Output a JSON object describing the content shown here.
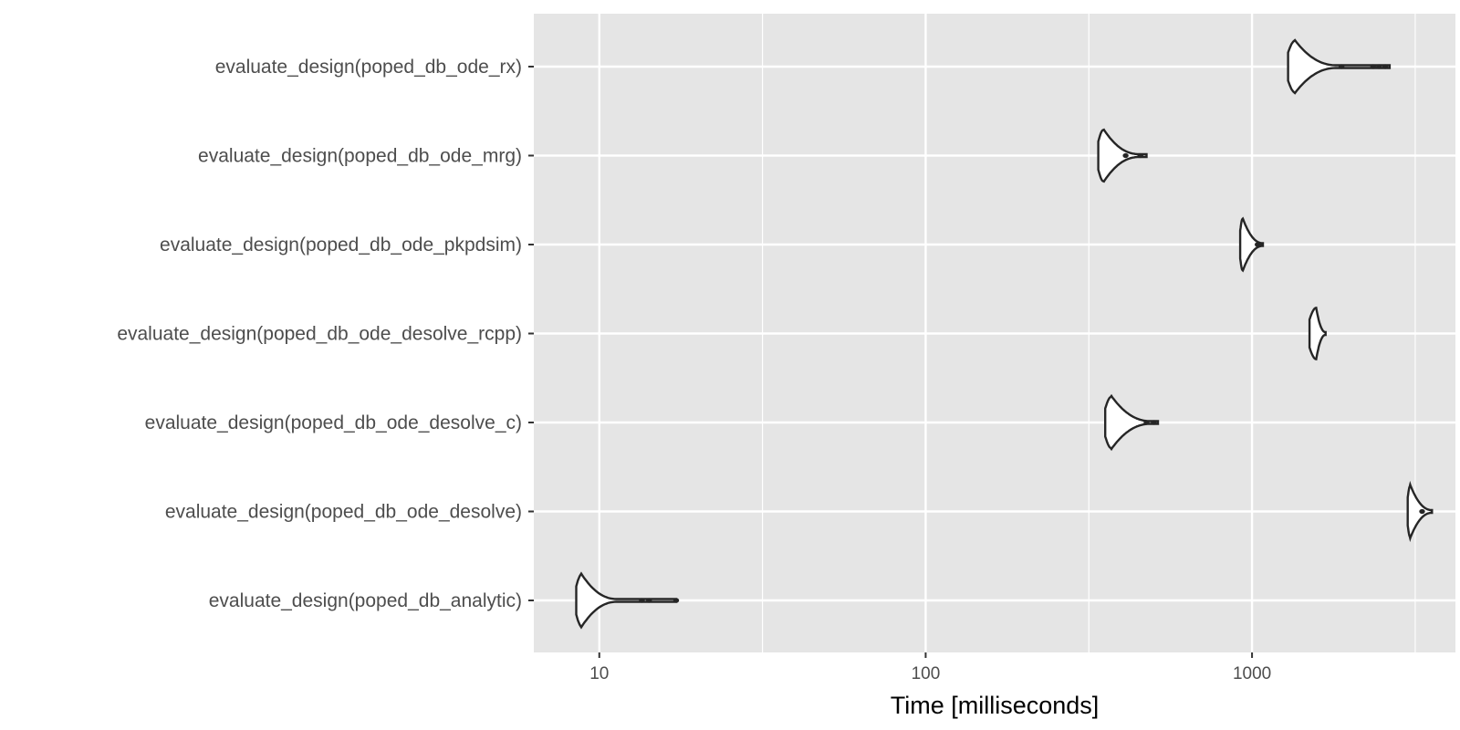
{
  "chart_data": {
    "type": "violin",
    "xlabel": "Time [milliseconds]",
    "ylabel": "",
    "x_scale": "log10",
    "xlim": [
      6.3,
      4200
    ],
    "xticks": [
      {
        "value": 10,
        "label": "10"
      },
      {
        "value": 100,
        "label": "100"
      },
      {
        "value": 1000,
        "label": "1000"
      }
    ],
    "grid": true,
    "categories": [
      "evaluate_design(poped_db_ode_rx)",
      "evaluate_design(poped_db_ode_mrg)",
      "evaluate_design(poped_db_ode_pkpdsim)",
      "evaluate_design(poped_db_ode_desolve_rcpp)",
      "evaluate_design(poped_db_ode_desolve_c)",
      "evaluate_design(poped_db_ode_desolve)",
      "evaluate_design(poped_db_analytic)"
    ],
    "series": [
      {
        "category": "evaluate_design(poped_db_ode_rx)",
        "min": 1290,
        "peak": 1350,
        "max": 2640,
        "tail_points": [
          1880,
          2350,
          2450,
          2560
        ]
      },
      {
        "category": "evaluate_design(poped_db_ode_mrg)",
        "min": 338,
        "peak": 350,
        "max": 475,
        "tail_points": [
          410,
          455
        ]
      },
      {
        "category": "evaluate_design(poped_db_ode_pkpdsim)",
        "min": 920,
        "peak": 935,
        "max": 1080,
        "tail_points": [
          1040,
          1065
        ]
      },
      {
        "category": "evaluate_design(poped_db_ode_desolve_rcpp)",
        "min": 1500,
        "peak": 1570,
        "max": 1680,
        "tail_points": []
      },
      {
        "category": "evaluate_design(poped_db_ode_desolve_c)",
        "min": 355,
        "peak": 370,
        "max": 515,
        "tail_points": [
          475,
          500
        ]
      },
      {
        "category": "evaluate_design(poped_db_ode_desolve)",
        "min": 3000,
        "peak": 3050,
        "max": 3560,
        "tail_points": [
          3320
        ]
      },
      {
        "category": "evaluate_design(poped_db_analytic)",
        "min": 8.5,
        "peak": 8.8,
        "max": 17.2,
        "tail_points": [
          13.5,
          14.2,
          17.2
        ]
      }
    ]
  }
}
